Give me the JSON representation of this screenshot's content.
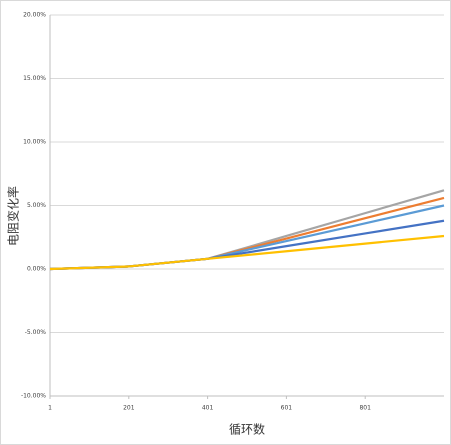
{
  "chart_data": {
    "type": "line",
    "x_label": "循环数",
    "y_label": "电阻变化率",
    "x": [
      1,
      201,
      401,
      601,
      801,
      1001
    ],
    "series": [
      {
        "color": "#a5a5a5",
        "values": [
          0,
          0.2,
          0.8,
          2.6,
          4.4,
          6.2
        ]
      },
      {
        "color": "#ed7d31",
        "values": [
          0,
          0.2,
          0.8,
          2.4,
          4.0,
          5.6
        ]
      },
      {
        "color": "#5b9bd5",
        "values": [
          0,
          0.2,
          0.8,
          2.2,
          3.6,
          5.0
        ]
      },
      {
        "color": "#4472c4",
        "values": [
          0,
          0.2,
          0.8,
          1.8,
          2.8,
          3.8
        ]
      },
      {
        "color": "#ffc000",
        "values": [
          0,
          0.2,
          0.8,
          1.4,
          2.0,
          2.6
        ]
      }
    ],
    "xlim": [
      1,
      1001
    ],
    "xticks": [
      1,
      201,
      401,
      601,
      801
    ],
    "ylim": [
      -10,
      20
    ],
    "yticks": [
      {
        "value": -10,
        "label": "-10.00%"
      },
      {
        "value": -5,
        "label": "-5.00%"
      },
      {
        "value": 0,
        "label": "0.00%"
      },
      {
        "value": 5,
        "label": "5.00%"
      },
      {
        "value": 10,
        "label": "10.00%"
      },
      {
        "value": 15,
        "label": "15.00%"
      },
      {
        "value": 20,
        "label": "20.00%"
      }
    ],
    "grid": true
  }
}
